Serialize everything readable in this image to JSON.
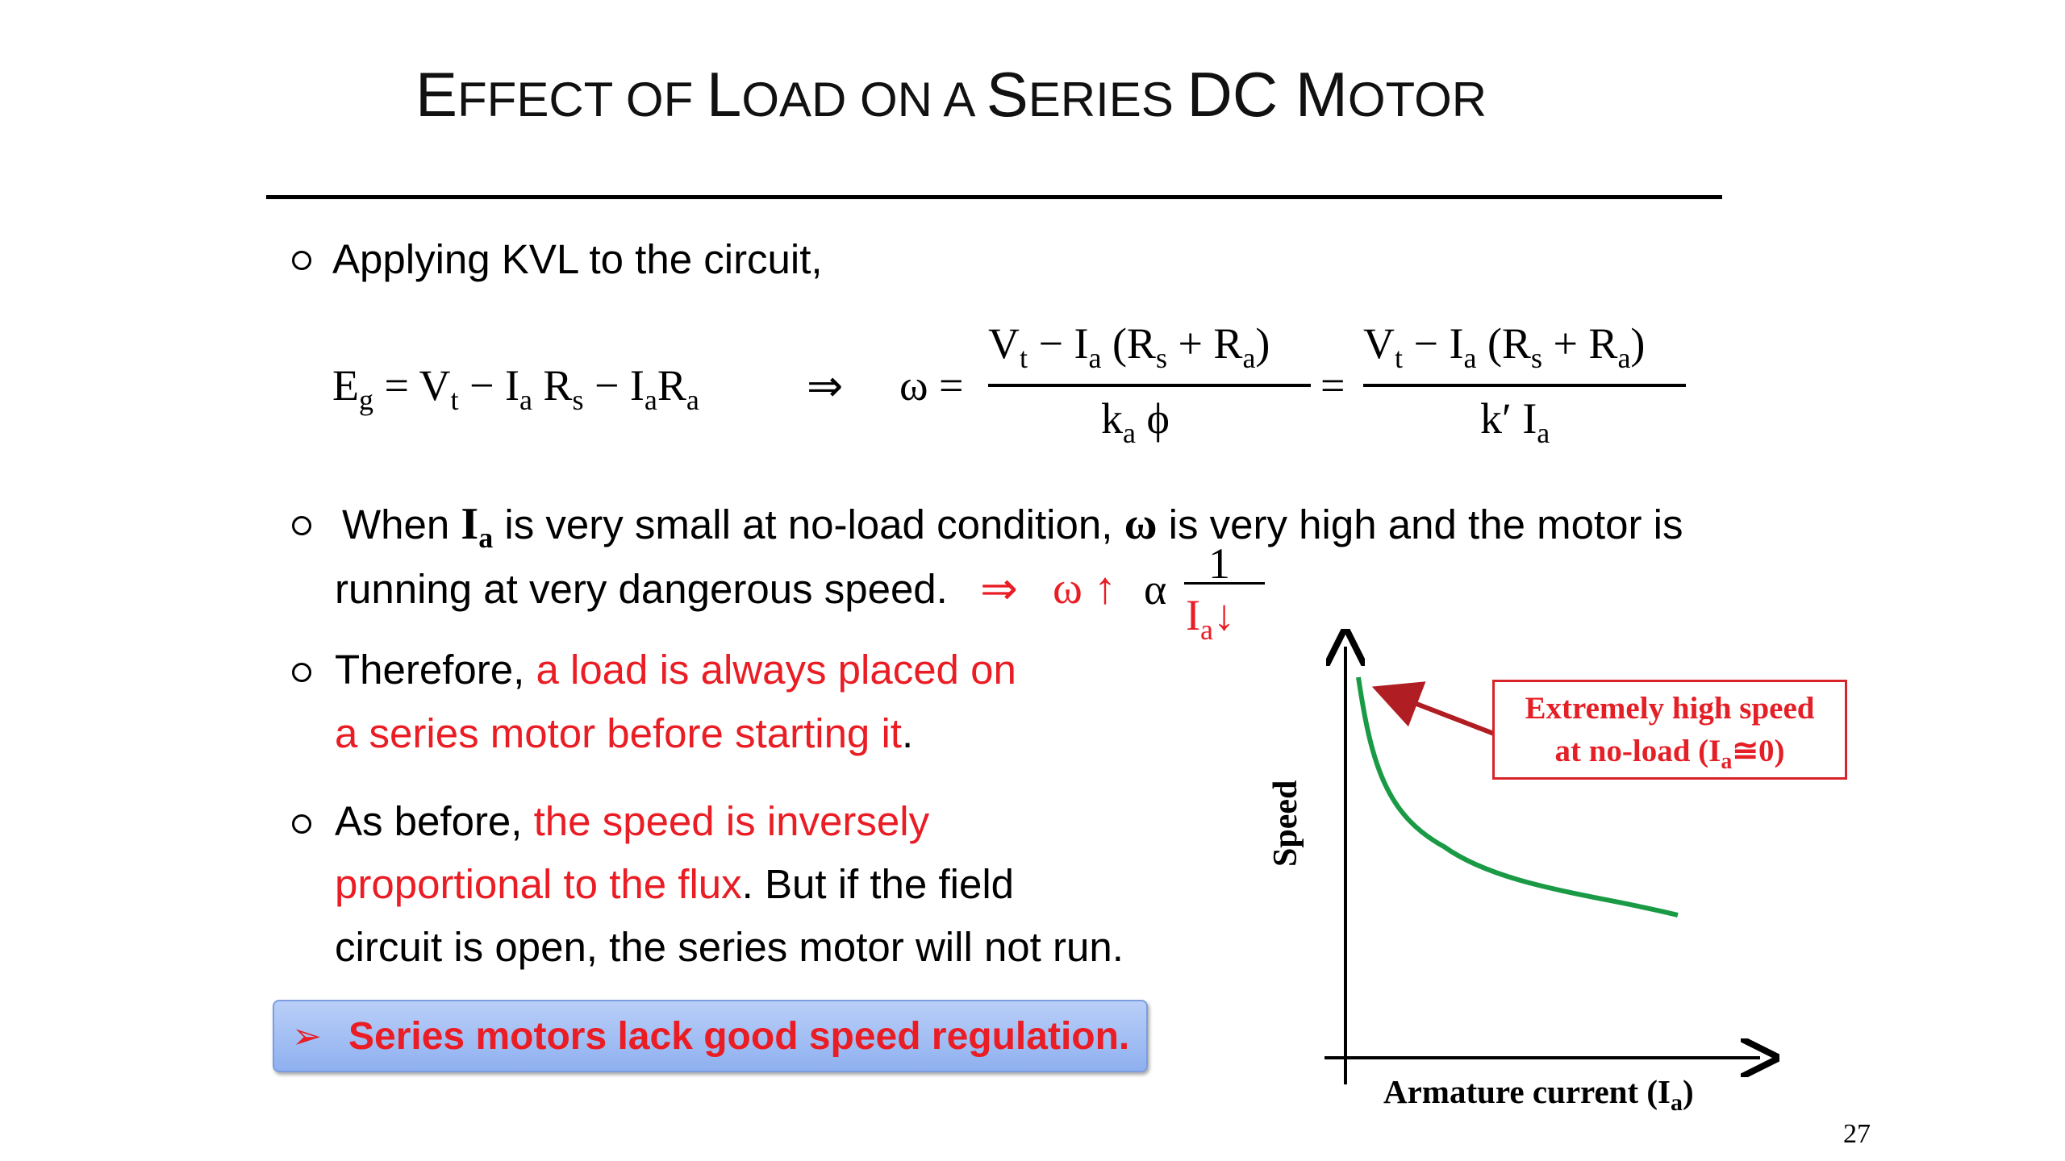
{
  "title": {
    "part1_cap": "E",
    "part1_rest": "FFECT OF ",
    "part2_cap": "L",
    "part2_rest": "OAD ON A ",
    "part3_cap": "S",
    "part3_rest": "ERIES ",
    "part4": "DC ",
    "part5_cap": "M",
    "part5_rest": "OTOR"
  },
  "bullets": {
    "b1": "Applying KVL to the circuit,",
    "b2_pre": "When ",
    "b2_I": "I",
    "b2_a": "a",
    "b2_mid": " is very small at no-load condition, ",
    "b2_omega": "ω",
    "b2_post": " is very high and the motor is",
    "b2_line2": "running at very dangerous speed.",
    "b2_implies": "⇒",
    "b2_omega_up": "ω ↑",
    "b2_alpha": "α",
    "b2_num": "1",
    "b2_den": "I",
    "b2_den_sub": "a",
    "b2_den_arrow": "↓",
    "b3_pre": "Therefore, ",
    "b3_red1": "a load is always placed on",
    "b3_red2": "a series motor before starting it",
    "b3_end": ".",
    "b4_pre": "As before, ",
    "b4_red1": "the speed is inversely",
    "b4_red2": "proportional to the flux",
    "b4_post2": ". But if the field",
    "b4_line3": "circuit is open, the series motor will not run."
  },
  "equation": {
    "Eg": "E",
    "g": "g",
    "eq1": "= V",
    "t1": "t",
    "minus1": " − I",
    "a1": "a",
    "Rs": "R",
    "s1": "s",
    "minus2": " − I",
    "a2": "a",
    "Ra": "R",
    "a3": "a",
    "implies": "⇒",
    "omega_eq": "ω =",
    "num1": "V",
    "num1_t": "t",
    "num1_rest": " − I",
    "num1_a": "a",
    "num1_paren": " (R",
    "num1_s": "s",
    "num1_plus": " + R",
    "num1_a2": "a",
    "num1_close": ")",
    "den1": "k",
    "den1_a": "a",
    "den1_phi": " ϕ",
    "eq2": "=",
    "den2": "k′ I",
    "den2_a": "a"
  },
  "graph": {
    "ylabel": "Speed",
    "xlabel_pre": "Armature current (I",
    "xlabel_sub": "a",
    "xlabel_post": ")",
    "curve_color": "#1a9a45",
    "callout_line1": "Extremely high speed",
    "callout_line2_pre": "at no-load (I",
    "callout_line2_sub": "a",
    "callout_line2_post": "≅0)"
  },
  "banner": {
    "icon": "➢",
    "text": "Series motors lack good speed regulation."
  },
  "page_number": "27",
  "colors": {
    "accent_red": "#ea1c24",
    "banner_blue": "#9db9f2"
  }
}
